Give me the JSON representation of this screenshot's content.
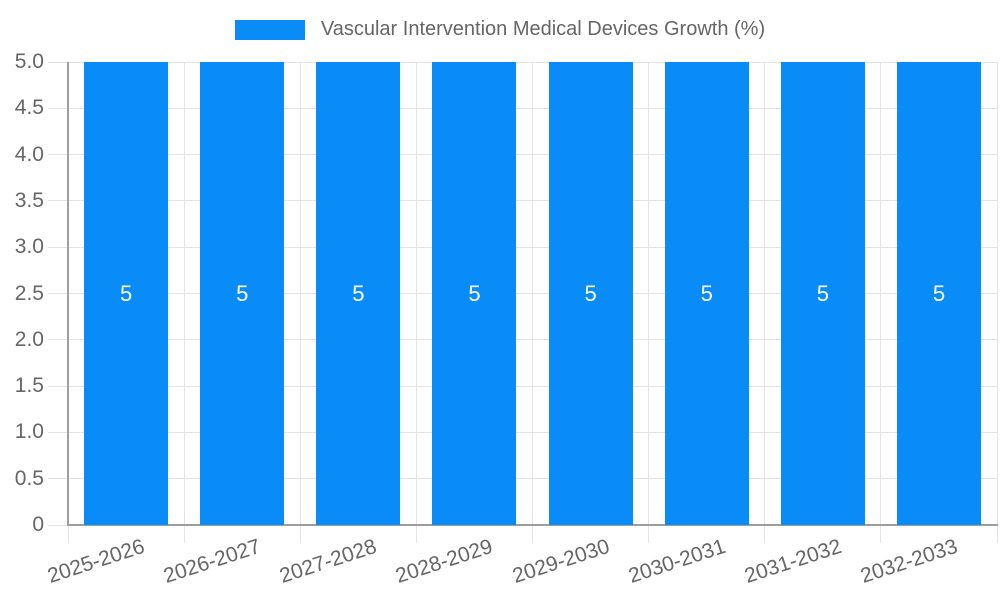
{
  "legend": {
    "label": "Vascular Intervention Medical Devices Growth (%)"
  },
  "chart_data": {
    "type": "bar",
    "title": "Vascular Intervention Medical Devices Growth (%)",
    "categories": [
      "2025-2026",
      "2026-2027",
      "2027-2028",
      "2028-2029",
      "2029-2030",
      "2030-2031",
      "2031-2032",
      "2032-2033"
    ],
    "series": [
      {
        "name": "Vascular Intervention Medical Devices Growth (%)",
        "values": [
          5,
          5,
          5,
          5,
          5,
          5,
          5,
          5
        ]
      }
    ],
    "bar_value_labels": [
      "5",
      "5",
      "5",
      "5",
      "5",
      "5",
      "5",
      "5"
    ],
    "xlabel": "",
    "ylabel": "",
    "ylim": [
      0,
      5
    ],
    "yticks": [
      0,
      0.5,
      1,
      1.5,
      2,
      2.5,
      3,
      3.5,
      4,
      4.5,
      5
    ],
    "ytick_labels": [
      "0",
      "0.5",
      "1.0",
      "1.5",
      "2.0",
      "2.5",
      "3.0",
      "3.5",
      "4.0",
      "4.5",
      "5.0"
    ],
    "grid": true,
    "legend_position": "top-center",
    "colors": {
      "bar": "#0a8cf8",
      "grid": "#e3e3e3",
      "axis": "#9e9e9e",
      "tick_text": "#666666",
      "bar_label": "#ffffff"
    }
  }
}
